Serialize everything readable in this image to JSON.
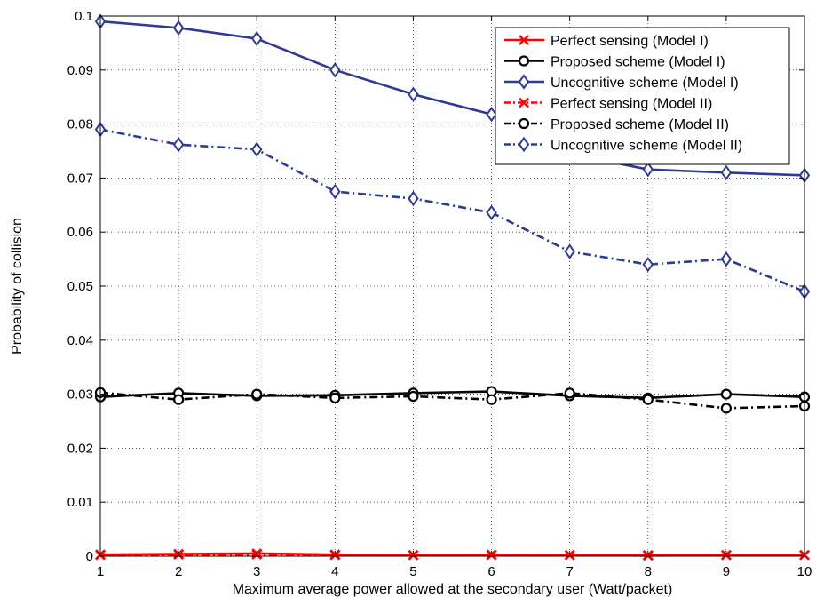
{
  "chart_data": {
    "type": "line",
    "title": "",
    "xlabel": "Maximum average power allowed at the secondary user (Watt/packet)",
    "ylabel": "Probability of collision",
    "x": [
      1,
      2,
      3,
      4,
      5,
      6,
      7,
      8,
      9,
      10
    ],
    "xlim": [
      1,
      10
    ],
    "ylim": [
      0,
      0.1
    ],
    "xticks": [
      "1",
      "2",
      "3",
      "4",
      "5",
      "6",
      "7",
      "8",
      "9",
      "10"
    ],
    "yticks": [
      "0",
      "0.01",
      "0.02",
      "0.03",
      "0.04",
      "0.05",
      "0.06",
      "0.07",
      "0.08",
      "0.09",
      "0.1"
    ],
    "grid": true,
    "legend_position": "top-right",
    "series": [
      {
        "name": "Perfect sensing (Model I)",
        "color": "#ff0000",
        "marker": "x",
        "line": "solid",
        "values": [
          0.0003,
          0.0004,
          0.0005,
          0.0003,
          0.0002,
          0.0003,
          0.0002,
          0.0002,
          0.0002,
          0.0002
        ]
      },
      {
        "name": "Proposed scheme (Model I)",
        "color": "#000000",
        "marker": "circle",
        "line": "solid",
        "values": [
          0.0295,
          0.0302,
          0.0297,
          0.0298,
          0.0302,
          0.0305,
          0.0297,
          0.0293,
          0.03,
          0.0295
        ]
      },
      {
        "name": "Uncognitive scheme (Model I)",
        "color": "#2e3a96",
        "marker": "diamond",
        "line": "solid",
        "values": [
          0.099,
          0.0978,
          0.0958,
          0.09,
          0.0855,
          0.0818,
          0.0745,
          0.0716,
          0.071,
          0.0705
        ]
      },
      {
        "name": "Perfect sensing (Model II)",
        "color": "#ff0000",
        "marker": "x",
        "line": "dashdot",
        "values": [
          0.0002,
          0.0003,
          0.0003,
          0.0002,
          0.0002,
          0.0002,
          0.0002,
          0.0001,
          0.0002,
          0.0002
        ]
      },
      {
        "name": "Proposed scheme (Model II)",
        "color": "#000000",
        "marker": "circle",
        "line": "dashdot",
        "values": [
          0.0303,
          0.029,
          0.03,
          0.0293,
          0.0296,
          0.029,
          0.0302,
          0.029,
          0.0274,
          0.0278
        ]
      },
      {
        "name": "Uncognitive scheme (Model II)",
        "color": "#2e3a96",
        "marker": "diamond",
        "line": "dashdot",
        "values": [
          0.079,
          0.0762,
          0.0753,
          0.0675,
          0.0662,
          0.0636,
          0.0564,
          0.054,
          0.055,
          0.049
        ]
      }
    ]
  }
}
